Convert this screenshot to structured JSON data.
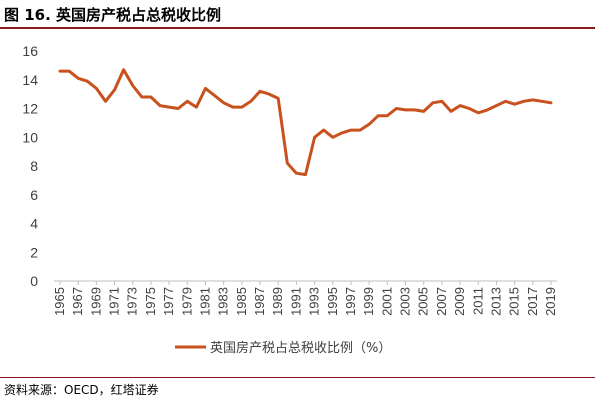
{
  "figure": {
    "title": "图 16.  英国房产税占总税收比例",
    "source": "资料来源：OECD，红塔证券"
  },
  "chart_data": {
    "type": "line",
    "title": "",
    "xlabel": "",
    "ylabel": "",
    "ylim": [
      0,
      16
    ],
    "yticks": [
      "0",
      "2",
      "4",
      "6",
      "8",
      "10",
      "12",
      "14",
      "16"
    ],
    "grid": false,
    "legend_position": "bottom",
    "xticks": [
      "1965",
      "1967",
      "1969",
      "1971",
      "1973",
      "1975",
      "1977",
      "1979",
      "1981",
      "1983",
      "1985",
      "1987",
      "1989",
      "1991",
      "1993",
      "1995",
      "1997",
      "1999",
      "2001",
      "2003",
      "2005",
      "2007",
      "2009",
      "2011",
      "2013",
      "2015",
      "2017",
      "2019"
    ],
    "x": [
      1965,
      1966,
      1967,
      1968,
      1969,
      1970,
      1971,
      1972,
      1973,
      1974,
      1975,
      1976,
      1977,
      1978,
      1979,
      1980,
      1981,
      1982,
      1983,
      1984,
      1985,
      1986,
      1987,
      1988,
      1989,
      1990,
      1991,
      1992,
      1993,
      1994,
      1995,
      1996,
      1997,
      1998,
      1999,
      2000,
      2001,
      2002,
      2003,
      2004,
      2005,
      2006,
      2007,
      2008,
      2009,
      2010,
      2011,
      2012,
      2013,
      2014,
      2015,
      2016,
      2017,
      2018,
      2019
    ],
    "series": [
      {
        "name": "英国房产税占总税收比例（%）",
        "color": "#c8511e",
        "values": [
          14.6,
          14.6,
          14.1,
          13.9,
          13.4,
          12.5,
          13.3,
          14.7,
          13.6,
          12.8,
          12.8,
          12.2,
          12.1,
          12.0,
          12.5,
          12.1,
          13.4,
          12.9,
          12.4,
          12.1,
          12.1,
          12.5,
          13.2,
          13.0,
          12.7,
          8.2,
          7.5,
          7.4,
          10.0,
          10.5,
          10.0,
          10.3,
          10.5,
          10.5,
          10.9,
          11.5,
          11.5,
          12.0,
          11.9,
          11.9,
          11.8,
          12.4,
          12.5,
          11.8,
          12.2,
          12.0,
          11.7,
          11.9,
          12.2,
          12.5,
          12.3,
          12.5,
          12.6,
          12.5,
          12.4
        ]
      }
    ]
  }
}
